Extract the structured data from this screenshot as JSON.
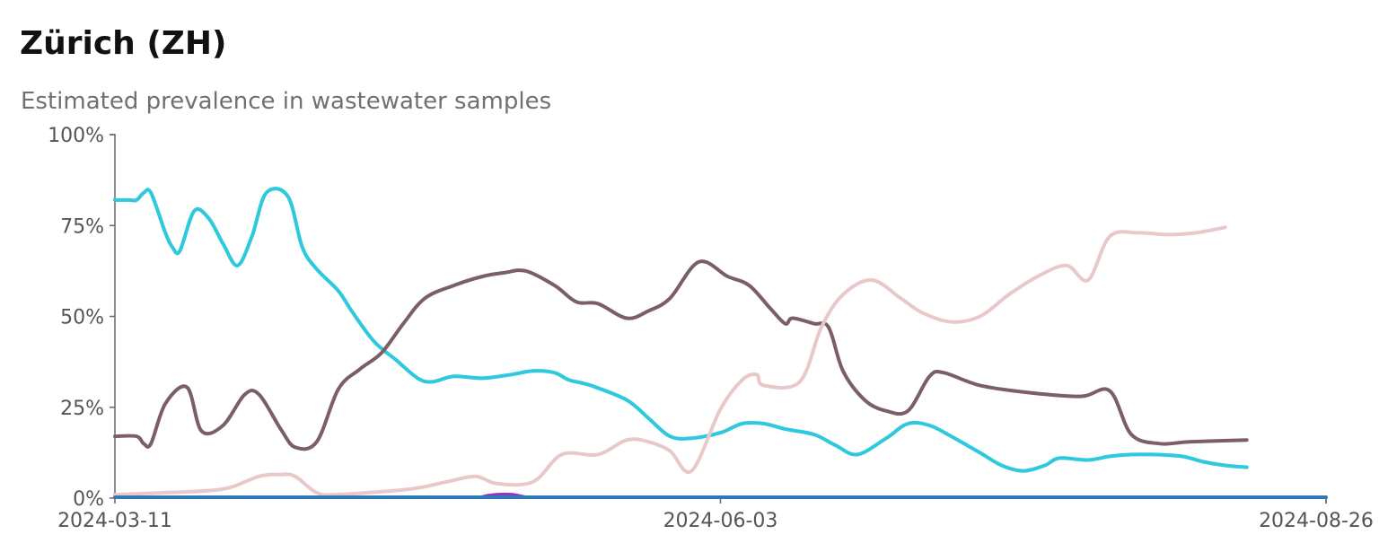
{
  "header": {
    "title": "Zürich (ZH)",
    "subtitle": "Estimated prevalence in wastewater samples"
  },
  "chart_data": {
    "type": "line",
    "title": "Zürich (ZH)",
    "subtitle": "Estimated prevalence in wastewater samples",
    "xlabel": "",
    "ylabel": "",
    "x_type": "date",
    "xlim": [
      "2024-03-11",
      "2024-08-26"
    ],
    "ylim": [
      0,
      100
    ],
    "x_ticks": [
      "2024-03-11",
      "2024-06-03",
      "2024-08-26"
    ],
    "y_ticks": [
      {
        "value": 0,
        "label": "0%"
      },
      {
        "value": 25,
        "label": "25%"
      },
      {
        "value": 50,
        "label": "50%"
      },
      {
        "value": 75,
        "label": "75%"
      },
      {
        "value": 100,
        "label": "100%"
      }
    ],
    "grid": false,
    "legend": "none",
    "series": [
      {
        "color": "#8fdde8",
        "points": [
          [
            "2024-03-11",
            82
          ],
          [
            "2024-03-13",
            82
          ],
          [
            "2024-03-14",
            82
          ],
          [
            "2024-03-15",
            84
          ],
          [
            "2024-03-16",
            84
          ],
          [
            "2024-03-18",
            73
          ],
          [
            "2024-03-19",
            69
          ],
          [
            "2024-03-20",
            68
          ],
          [
            "2024-03-22",
            79
          ],
          [
            "2024-03-24",
            77
          ],
          [
            "2024-03-26",
            70
          ],
          [
            "2024-03-28",
            64
          ],
          [
            "2024-03-30",
            72
          ],
          [
            "2024-04-01",
            84
          ],
          [
            "2024-04-04",
            83
          ],
          [
            "2024-04-06",
            69
          ],
          [
            "2024-04-08",
            63
          ],
          [
            "2024-04-11",
            57
          ],
          [
            "2024-04-13",
            51
          ],
          [
            "2024-04-16",
            43
          ],
          [
            "2024-04-19",
            38
          ],
          [
            "2024-04-22",
            33
          ],
          [
            "2024-04-24",
            32
          ],
          [
            "2024-04-27",
            33.5
          ],
          [
            "2024-05-01",
            33
          ],
          [
            "2024-05-05",
            34
          ],
          [
            "2024-05-08",
            35
          ],
          [
            "2024-05-11",
            34.5
          ],
          [
            "2024-05-13",
            32.5
          ],
          [
            "2024-05-16",
            31
          ],
          [
            "2024-05-21",
            27
          ],
          [
            "2024-05-24",
            22
          ],
          [
            "2024-05-27",
            17
          ],
          [
            "2024-05-30",
            16.5
          ],
          [
            "2024-06-03",
            18
          ],
          [
            "2024-06-06",
            20.5
          ],
          [
            "2024-06-09",
            20.5
          ],
          [
            "2024-06-12",
            19
          ],
          [
            "2024-06-16",
            17.5
          ],
          [
            "2024-06-19",
            14.5
          ],
          [
            "2024-06-22",
            12
          ],
          [
            "2024-06-26",
            16.5
          ],
          [
            "2024-06-29",
            20.5
          ],
          [
            "2024-07-02",
            20
          ],
          [
            "2024-07-05",
            17
          ],
          [
            "2024-07-09",
            12.5
          ],
          [
            "2024-07-12",
            9
          ],
          [
            "2024-07-15",
            7.5
          ],
          [
            "2024-07-18",
            9
          ],
          [
            "2024-07-20",
            11
          ],
          [
            "2024-07-24",
            10.5
          ],
          [
            "2024-07-27",
            11.5
          ],
          [
            "2024-07-30",
            12
          ],
          [
            "2024-08-02",
            12
          ],
          [
            "2024-08-06",
            11.5
          ],
          [
            "2024-08-09",
            10
          ],
          [
            "2024-08-12",
            9
          ],
          [
            "2024-08-15",
            8.5
          ]
        ]
      },
      {
        "color": "#7a5f63",
        "points": [
          [
            "2024-03-11",
            17
          ],
          [
            "2024-03-14",
            17
          ],
          [
            "2024-03-15",
            15
          ],
          [
            "2024-03-16",
            15
          ],
          [
            "2024-03-18",
            26
          ],
          [
            "2024-03-21",
            30.5
          ],
          [
            "2024-03-23",
            18.5
          ],
          [
            "2024-03-26",
            20
          ],
          [
            "2024-03-29",
            28.5
          ],
          [
            "2024-03-31",
            28.5
          ],
          [
            "2024-04-03",
            19
          ],
          [
            "2024-04-05",
            14
          ],
          [
            "2024-04-08",
            15.5
          ],
          [
            "2024-04-11",
            30
          ],
          [
            "2024-04-14",
            35.5
          ],
          [
            "2024-04-17",
            40
          ],
          [
            "2024-04-20",
            48
          ],
          [
            "2024-04-23",
            55
          ],
          [
            "2024-04-27",
            58.5
          ],
          [
            "2024-05-01",
            61
          ],
          [
            "2024-05-04",
            62
          ],
          [
            "2024-05-07",
            62.5
          ],
          [
            "2024-05-11",
            58.5
          ],
          [
            "2024-05-14",
            54
          ],
          [
            "2024-05-17",
            53.5
          ],
          [
            "2024-05-21",
            49.5
          ],
          [
            "2024-05-24",
            51.5
          ],
          [
            "2024-05-27",
            55
          ],
          [
            "2024-05-31",
            65
          ],
          [
            "2024-06-04",
            61
          ],
          [
            "2024-06-07",
            58.5
          ],
          [
            "2024-06-10",
            52
          ],
          [
            "2024-06-12",
            48
          ],
          [
            "2024-06-13",
            49.5
          ],
          [
            "2024-06-16",
            48
          ],
          [
            "2024-06-18",
            47
          ],
          [
            "2024-06-20",
            35
          ],
          [
            "2024-06-23",
            27
          ],
          [
            "2024-06-26",
            24
          ],
          [
            "2024-06-29",
            24
          ],
          [
            "2024-07-02",
            33.5
          ],
          [
            "2024-07-04",
            34.5
          ],
          [
            "2024-07-09",
            31
          ],
          [
            "2024-07-16",
            29
          ],
          [
            "2024-07-23",
            28
          ],
          [
            "2024-07-27",
            29.5
          ],
          [
            "2024-07-30",
            17.5
          ],
          [
            "2024-08-03",
            15
          ],
          [
            "2024-08-07",
            15.5
          ],
          [
            "2024-08-15",
            16
          ]
        ]
      },
      {
        "color": "#e8c8c9",
        "points": [
          [
            "2024-03-11",
            1
          ],
          [
            "2024-03-18",
            1.5
          ],
          [
            "2024-03-26",
            2.5
          ],
          [
            "2024-03-31",
            6
          ],
          [
            "2024-04-03",
            6.5
          ],
          [
            "2024-04-05",
            6
          ],
          [
            "2024-04-08",
            1.5
          ],
          [
            "2024-04-11",
            1
          ],
          [
            "2024-04-21",
            2.5
          ],
          [
            "2024-04-26",
            4.5
          ],
          [
            "2024-04-30",
            6
          ],
          [
            "2024-05-03",
            4
          ],
          [
            "2024-05-08",
            4.5
          ],
          [
            "2024-05-12",
            12
          ],
          [
            "2024-05-17",
            12
          ],
          [
            "2024-05-21",
            16
          ],
          [
            "2024-05-24",
            15.5
          ],
          [
            "2024-05-27",
            13
          ],
          [
            "2024-05-30",
            7.5
          ],
          [
            "2024-06-03",
            24.5
          ],
          [
            "2024-06-06",
            32.5
          ],
          [
            "2024-06-08",
            34
          ],
          [
            "2024-06-09",
            31
          ],
          [
            "2024-06-14",
            32
          ],
          [
            "2024-06-17",
            47
          ],
          [
            "2024-06-20",
            56
          ],
          [
            "2024-06-24",
            60
          ],
          [
            "2024-06-28",
            55
          ],
          [
            "2024-07-01",
            51
          ],
          [
            "2024-07-05",
            48.5
          ],
          [
            "2024-07-09",
            50
          ],
          [
            "2024-07-13",
            56
          ],
          [
            "2024-07-17",
            61
          ],
          [
            "2024-07-21",
            64
          ],
          [
            "2024-07-24",
            60
          ],
          [
            "2024-07-27",
            72
          ],
          [
            "2024-07-31",
            73
          ],
          [
            "2024-08-04",
            72.5
          ],
          [
            "2024-08-08",
            73
          ],
          [
            "2024-08-12",
            74.5
          ]
        ]
      },
      {
        "color": "#9b30c8",
        "points": [
          [
            "2024-04-30",
            0
          ],
          [
            "2024-05-02",
            1
          ],
          [
            "2024-05-05",
            1.2
          ],
          [
            "2024-05-08",
            0
          ]
        ]
      },
      {
        "color": "#2e7ab8",
        "points": [
          [
            "2024-03-11",
            0
          ],
          [
            "2024-08-26",
            0
          ]
        ]
      }
    ]
  }
}
